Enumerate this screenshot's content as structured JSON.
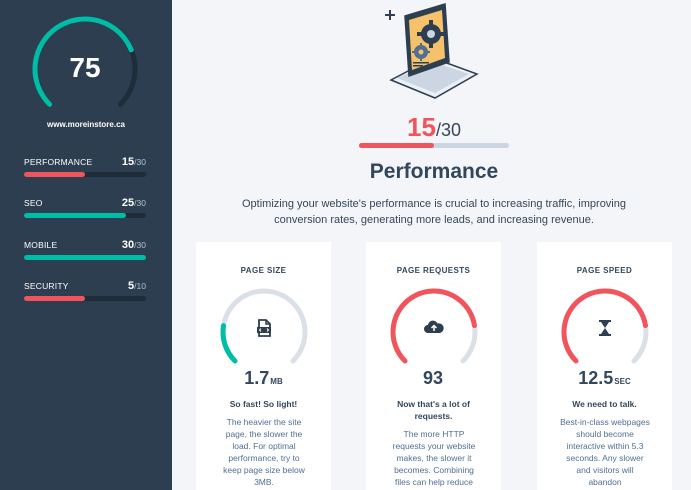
{
  "sidebar": {
    "overall_score": "75",
    "overall_fraction": 0.75,
    "site_url": "www.moreinstore.ca",
    "metrics": [
      {
        "name": "PERFORMANCE",
        "score": "15",
        "max": "/30",
        "fraction": 0.5,
        "color": "#f2545b"
      },
      {
        "name": "SEO",
        "score": "25",
        "max": "/30",
        "fraction": 0.8333,
        "color": "#00bda5"
      },
      {
        "name": "MOBILE",
        "score": "30",
        "max": "/30",
        "fraction": 1.0,
        "color": "#00bda5"
      },
      {
        "name": "SECURITY",
        "score": "5",
        "max": "/10",
        "fraction": 0.5,
        "color": "#f2545b"
      }
    ]
  },
  "main": {
    "score": "15",
    "score_max": "/30",
    "score_fraction": 0.5,
    "title": "Performance",
    "description": "Optimizing your website's performance is crucial to increasing traffic, improving conversion rates, generating more leads, and increasing revenue."
  },
  "cards": [
    {
      "title": "PAGE SIZE",
      "icon": "file-icon",
      "value": "1.7",
      "unit": "MB",
      "gauge_fraction": 0.2,
      "gauge_color": "#00bda5",
      "headline": "So fast! So light!",
      "body": "The heavier the site page, the slower the load. For optimal performance, try to keep page size below 3MB."
    },
    {
      "title": "PAGE REQUESTS",
      "icon": "cloud-upload-icon",
      "value": "93",
      "unit": "",
      "gauge_fraction": 0.8,
      "gauge_color": "#f2545b",
      "headline": "Now that's a lot of requests.",
      "body": "The more HTTP requests your website makes, the slower it becomes. Combining files can help reduce"
    },
    {
      "title": "PAGE SPEED",
      "icon": "hourglass-icon",
      "value": "12.5",
      "unit": "SEC",
      "gauge_fraction": 0.8,
      "gauge_color": "#f2545b",
      "headline": "We need to talk.",
      "body": "Best-in-class webpages should become interactive within 5.3 seconds. Any slower and visitors will abandon"
    }
  ],
  "colors": {
    "sidebar_bg": "#2d3e50",
    "accent_red": "#f2545b",
    "accent_teal": "#00bda5",
    "track_gray": "#dbe0e6"
  }
}
